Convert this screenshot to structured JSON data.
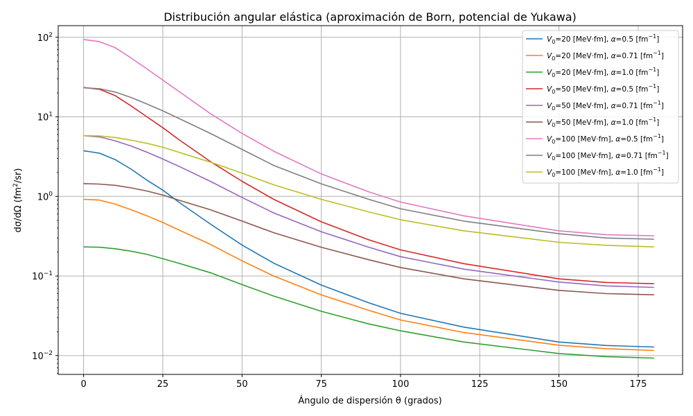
{
  "chart_data": {
    "type": "line",
    "title": "Distribución angular elástica (aproximación de Born, potencial de Yukawa)",
    "xlabel": "Ángulo de dispersión θ (grados)",
    "ylabel_parts": [
      "dσ/dΩ (fm",
      "2",
      "/sr)"
    ],
    "xlim": [
      -8,
      189
    ],
    "ylim": [
      0.0058,
      140
    ],
    "yscale": "log",
    "grid": true,
    "legend_position": "top-right",
    "x_ticks": [
      {
        "value": 0,
        "label": "0"
      },
      {
        "value": 25,
        "label": "25"
      },
      {
        "value": 50,
        "label": "50"
      },
      {
        "value": 75,
        "label": "75"
      },
      {
        "value": 100,
        "label": "100"
      },
      {
        "value": 125,
        "label": "125"
      },
      {
        "value": 150,
        "label": "150"
      },
      {
        "value": 175,
        "label": "175"
      }
    ],
    "y_ticks": [
      {
        "value": 0.01,
        "base": "10",
        "exp": "−2"
      },
      {
        "value": 0.1,
        "base": "10",
        "exp": "−1"
      },
      {
        "value": 1,
        "base": "10",
        "exp": "0"
      },
      {
        "value": 10,
        "base": "10",
        "exp": "1"
      },
      {
        "value": 100,
        "base": "10",
        "exp": "2"
      }
    ],
    "x": [
      0,
      5,
      10,
      15,
      20,
      25,
      30,
      40,
      50,
      60,
      75,
      90,
      100,
      120,
      150,
      165,
      180
    ],
    "series": [
      {
        "V0": "20",
        "alpha": "0.5",
        "color": "#1f77b4",
        "values": [
          3.75,
          3.5,
          2.9,
          2.2,
          1.6,
          1.2,
          0.85,
          0.45,
          0.245,
          0.145,
          0.077,
          0.046,
          0.034,
          0.0228,
          0.0148,
          0.0134,
          0.0128
        ]
      },
      {
        "V0": "20",
        "alpha": "0.71",
        "color": "#ff7f0e",
        "values": [
          0.92,
          0.9,
          0.8,
          0.68,
          0.57,
          0.47,
          0.38,
          0.25,
          0.155,
          0.1,
          0.058,
          0.037,
          0.028,
          0.0195,
          0.0135,
          0.0122,
          0.0116
        ]
      },
      {
        "V0": "20",
        "alpha": "1.0",
        "color": "#2ca02c",
        "values": [
          0.232,
          0.23,
          0.22,
          0.205,
          0.187,
          0.165,
          0.145,
          0.11,
          0.078,
          0.056,
          0.036,
          0.025,
          0.0205,
          0.0148,
          0.0106,
          0.0097,
          0.0093
        ]
      },
      {
        "V0": "50",
        "alpha": "0.5",
        "color": "#d62728",
        "values": [
          23.4,
          22.2,
          18.5,
          13.7,
          10.0,
          7.3,
          5.2,
          2.75,
          1.55,
          0.92,
          0.48,
          0.285,
          0.213,
          0.143,
          0.092,
          0.083,
          0.08
        ]
      },
      {
        "V0": "50",
        "alpha": "0.71",
        "color": "#9467bd",
        "values": [
          5.8,
          5.6,
          5.0,
          4.3,
          3.6,
          2.95,
          2.4,
          1.55,
          0.97,
          0.62,
          0.36,
          0.23,
          0.175,
          0.122,
          0.084,
          0.075,
          0.072
        ]
      },
      {
        "V0": "50",
        "alpha": "1.0",
        "color": "#8c564b",
        "values": [
          1.45,
          1.43,
          1.38,
          1.28,
          1.17,
          1.04,
          0.9,
          0.68,
          0.49,
          0.35,
          0.23,
          0.16,
          0.128,
          0.092,
          0.066,
          0.06,
          0.058
        ]
      },
      {
        "V0": "100",
        "alpha": "0.5",
        "color": "#e377c2",
        "values": [
          94,
          88,
          74,
          55,
          40,
          29,
          21,
          11,
          6.2,
          3.7,
          1.92,
          1.14,
          0.85,
          0.57,
          0.37,
          0.33,
          0.32
        ]
      },
      {
        "V0": "100",
        "alpha": "0.71",
        "color": "#7f7f7f",
        "values": [
          23.2,
          22.6,
          20.5,
          17.5,
          14.5,
          11.9,
          9.6,
          6.2,
          3.9,
          2.45,
          1.44,
          0.92,
          0.7,
          0.49,
          0.34,
          0.3,
          0.29
        ]
      },
      {
        "V0": "100",
        "alpha": "1.0",
        "color": "#bcbd22",
        "values": [
          5.8,
          5.75,
          5.5,
          5.1,
          4.65,
          4.15,
          3.6,
          2.7,
          1.96,
          1.4,
          0.92,
          0.64,
          0.51,
          0.37,
          0.265,
          0.243,
          0.232
        ]
      }
    ]
  },
  "legend": {
    "v_prefix": "V",
    "v_sub": "0",
    "v_unit": " [MeV·fm], ",
    "alpha_sym": "α",
    "alpha_unit": " [fm",
    "alpha_exp": "−1",
    "close": "]"
  }
}
